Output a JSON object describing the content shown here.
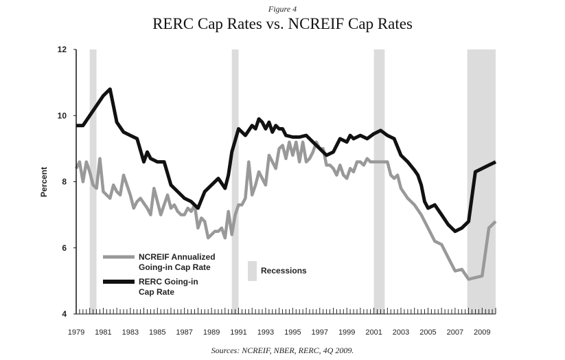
{
  "figure_label": "Figure 4",
  "source_note": "Sources: NCREIF, NBER, RERC, 4Q 2009.",
  "chart_data": {
    "type": "line",
    "title": "RERC Cap Rates vs. NCREIF Cap Rates",
    "xlabel": "",
    "ylabel": "Percent",
    "xlim": [
      1979,
      2010
    ],
    "ylim": [
      4,
      12
    ],
    "yticks": [
      4,
      6,
      8,
      10,
      12
    ],
    "xticks": [
      "1979",
      "1981",
      "1983",
      "1985",
      "1987",
      "1989",
      "1991",
      "1993",
      "1995",
      "1997",
      "1999",
      "2001",
      "2003",
      "2005",
      "2007",
      "2009"
    ],
    "grid": false,
    "legend_position": "bottom-left",
    "recessions": [
      [
        1980.0,
        1980.5
      ],
      [
        1990.5,
        1991.0
      ],
      [
        2001.0,
        2001.8
      ],
      [
        2007.9,
        2010.0
      ]
    ],
    "recession_label": "Recessions",
    "colors": {
      "ncreif": "#999999",
      "rerc": "#111111",
      "recession": "#dcdcdc"
    },
    "series": [
      {
        "key": "rerc",
        "name": "RERC Going-in Cap Rate",
        "x": [
          1979.0,
          1979.5,
          1980.0,
          1980.5,
          1981.0,
          1981.5,
          1982.0,
          1982.5,
          1983.0,
          1983.5,
          1984.0,
          1984.25,
          1984.5,
          1985.0,
          1985.5,
          1986.0,
          1986.5,
          1987.0,
          1987.5,
          1988.0,
          1988.5,
          1989.0,
          1989.5,
          1990.0,
          1990.25,
          1990.5,
          1991.0,
          1991.5,
          1992.0,
          1992.25,
          1992.5,
          1992.75,
          1993.0,
          1993.25,
          1993.5,
          1993.75,
          1994.0,
          1994.25,
          1994.5,
          1995.0,
          1995.5,
          1996.0,
          1996.5,
          1997.0,
          1997.5,
          1998.0,
          1998.5,
          1999.0,
          1999.25,
          1999.5,
          2000.0,
          2000.5,
          2001.0,
          2001.5,
          2002.0,
          2002.5,
          2003.0,
          2003.5,
          2004.0,
          2004.25,
          2004.5,
          2004.75,
          2005.0,
          2005.5,
          2006.0,
          2006.5,
          2007.0,
          2007.5,
          2008.0,
          2008.5,
          2009.0,
          2009.5,
          2010.0
        ],
        "values": [
          9.7,
          9.7,
          10.0,
          10.3,
          10.6,
          10.8,
          9.8,
          9.5,
          9.4,
          9.3,
          8.6,
          8.9,
          8.7,
          8.6,
          8.6,
          7.9,
          7.7,
          7.5,
          7.4,
          7.2,
          7.7,
          7.9,
          8.1,
          7.8,
          8.2,
          8.9,
          9.6,
          9.4,
          9.7,
          9.6,
          9.9,
          9.8,
          9.6,
          9.8,
          9.5,
          9.7,
          9.6,
          9.6,
          9.4,
          9.35,
          9.35,
          9.4,
          9.2,
          9.0,
          8.8,
          8.9,
          9.3,
          9.2,
          9.4,
          9.3,
          9.4,
          9.3,
          9.45,
          9.55,
          9.4,
          9.3,
          8.8,
          8.6,
          8.35,
          8.2,
          7.9,
          7.4,
          7.2,
          7.3,
          7.0,
          6.7,
          6.5,
          6.6,
          6.8,
          8.3,
          8.4,
          8.5,
          8.6
        ]
      },
      {
        "key": "ncreif",
        "name": "NCREIF Annualized Going-in Cap Rate",
        "x": [
          1979.0,
          1979.25,
          1979.5,
          1979.75,
          1980.0,
          1980.25,
          1980.5,
          1980.75,
          1981.0,
          1981.25,
          1981.5,
          1981.75,
          1982.0,
          1982.25,
          1982.5,
          1982.75,
          1983.0,
          1983.25,
          1983.5,
          1983.75,
          1984.0,
          1984.25,
          1984.5,
          1984.75,
          1985.0,
          1985.25,
          1985.5,
          1985.75,
          1986.0,
          1986.25,
          1986.5,
          1986.75,
          1987.0,
          1987.25,
          1987.5,
          1987.75,
          1988.0,
          1988.25,
          1988.5,
          1988.75,
          1989.0,
          1989.25,
          1989.5,
          1989.75,
          1990.0,
          1990.25,
          1990.5,
          1990.75,
          1991.0,
          1991.25,
          1991.5,
          1991.75,
          1992.0,
          1992.25,
          1992.5,
          1992.75,
          1993.0,
          1993.25,
          1993.5,
          1993.75,
          1994.0,
          1994.25,
          1994.5,
          1994.75,
          1995.0,
          1995.25,
          1995.5,
          1995.75,
          1996.0,
          1996.25,
          1996.5,
          1996.75,
          1997.0,
          1997.25,
          1997.5,
          1997.75,
          1998.0,
          1998.25,
          1998.5,
          1998.75,
          1999.0,
          1999.25,
          1999.5,
          1999.75,
          2000.0,
          2000.25,
          2000.5,
          2000.75,
          2001.0,
          2001.25,
          2001.5,
          2002.0,
          2002.25,
          2002.5,
          2002.75,
          2003.0,
          2003.5,
          2004.0,
          2004.5,
          2005.0,
          2005.5,
          2006.0,
          2006.5,
          2007.0,
          2007.5,
          2008.0,
          2008.5,
          2009.0,
          2009.5,
          2010.0
        ],
        "values": [
          8.4,
          8.6,
          8.0,
          8.6,
          8.3,
          7.9,
          7.8,
          8.7,
          7.7,
          7.6,
          7.5,
          7.9,
          7.7,
          7.6,
          8.2,
          7.9,
          7.6,
          7.2,
          7.4,
          7.5,
          7.35,
          7.2,
          7.0,
          7.8,
          7.4,
          7.0,
          7.3,
          7.6,
          7.2,
          7.3,
          7.1,
          7.0,
          7.0,
          7.2,
          7.1,
          7.3,
          6.6,
          6.9,
          6.8,
          6.3,
          6.4,
          6.5,
          6.5,
          6.6,
          6.3,
          7.1,
          6.4,
          7.0,
          7.3,
          7.3,
          7.5,
          8.6,
          7.6,
          7.9,
          8.3,
          8.1,
          7.9,
          8.8,
          8.6,
          8.4,
          9.0,
          9.1,
          8.7,
          9.2,
          8.8,
          9.2,
          8.6,
          9.2,
          8.6,
          8.7,
          8.9,
          9.2,
          9.0,
          9.0,
          8.5,
          8.5,
          8.4,
          8.2,
          8.5,
          8.2,
          8.1,
          8.4,
          8.3,
          8.6,
          8.6,
          8.5,
          8.7,
          8.6,
          8.6,
          8.6,
          8.6,
          8.6,
          8.2,
          8.1,
          8.2,
          7.8,
          7.5,
          7.3,
          7.0,
          6.6,
          6.2,
          6.1,
          5.7,
          5.3,
          5.35,
          5.05,
          5.1,
          5.15,
          6.6,
          6.8
        ]
      }
    ]
  }
}
